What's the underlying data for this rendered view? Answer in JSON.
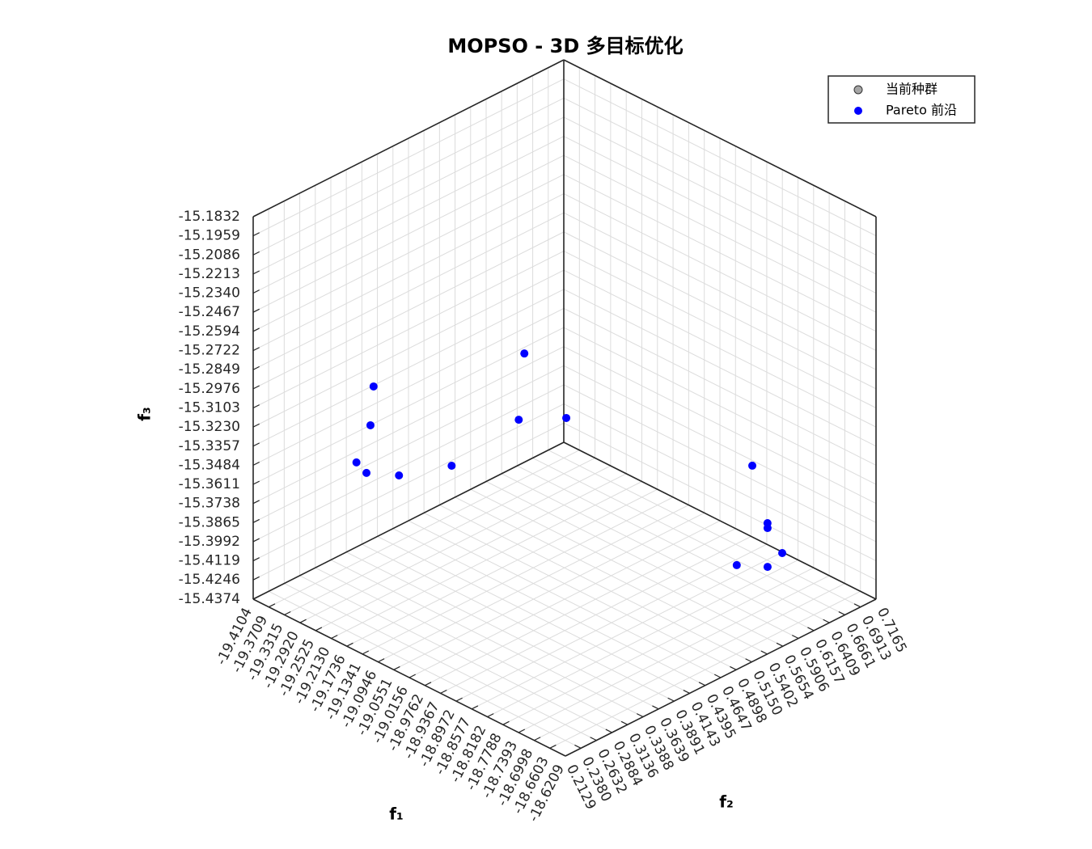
{
  "chart_data": {
    "type": "scatter3d",
    "title": "MOPSO - 3D 多目标优化",
    "xlabel": "f₁",
    "ylabel": "f₂",
    "zlabel": "f₃",
    "xlim": [
      -19.4104,
      -18.6209
    ],
    "ylim": [
      0.2129,
      0.7165
    ],
    "zlim": [
      -15.4374,
      -15.1832
    ],
    "xticks": [
      -19.4104,
      -19.3709,
      -19.3315,
      {
        "value": -19.292,
        "label": "-19.2920"
      },
      -19.2525,
      {
        "value": -19.213,
        "label": "-19.2130"
      },
      -19.1736,
      -19.1341,
      -19.0946,
      -19.0551,
      -19.0156,
      -18.9762,
      -18.9367,
      -18.8972,
      -18.8577,
      -18.8182,
      -18.7788,
      -18.7393,
      -18.6998,
      -18.6603,
      -18.6209
    ],
    "yticks": [
      0.2129,
      {
        "value": 0.238,
        "label": "0.2380"
      },
      0.2632,
      0.2884,
      0.3136,
      0.3388,
      0.3639,
      0.3891,
      0.4143,
      0.4395,
      0.4647,
      0.4898,
      {
        "value": 0.515,
        "label": "0.5150"
      },
      0.5402,
      0.5654,
      0.5906,
      0.6157,
      0.6409,
      0.6661,
      0.6913,
      0.7165
    ],
    "zticks": [
      -15.1832,
      -15.1959,
      -15.2086,
      -15.2213,
      {
        "value": -15.234,
        "label": "-15.2340"
      },
      -15.2467,
      -15.2594,
      -15.2722,
      -15.2849,
      -15.2976,
      -15.3103,
      {
        "value": -15.323,
        "label": "-15.3230"
      },
      -15.3357,
      -15.3484,
      -15.3611,
      -15.3738,
      -15.3865,
      -15.3992,
      -15.4119,
      -15.4246,
      -15.4374
    ],
    "grid": true,
    "legend": "upper right",
    "series": [
      {
        "name": "当前种群",
        "color": "#a6a6a6",
        "x": [],
        "y": [],
        "z": []
      },
      {
        "name": "Pareto 前沿",
        "color": "#0000ff",
        "x": [
          -19.3117,
          -19.3141,
          -19.3346,
          -19.2955,
          -19.2,
          -19.1096,
          -18.9635,
          -18.9482,
          -18.9403,
          -18.8246,
          -18.8053,
          -18.793,
          -18.7595,
          -18.8349,
          -18.7914
        ],
        "y": [
          0.3448,
          0.3413,
          0.3317,
          0.3229,
          0.3144,
          0.3418,
          0.366,
          0.3471,
          0.4191,
          0.6465,
          0.6588,
          0.651,
          0.6533,
          0.6279,
          0.65
        ],
        "z": [
          -15.3103,
          -15.3357,
          -15.3611,
          -15.3611,
          -15.3484,
          -15.3357,
          -15.2468,
          -15.2849,
          -15.2976,
          -15.3611,
          -15.3993,
          -15.3993,
          -15.412,
          -15.4247,
          -15.4247
        ]
      }
    ]
  }
}
